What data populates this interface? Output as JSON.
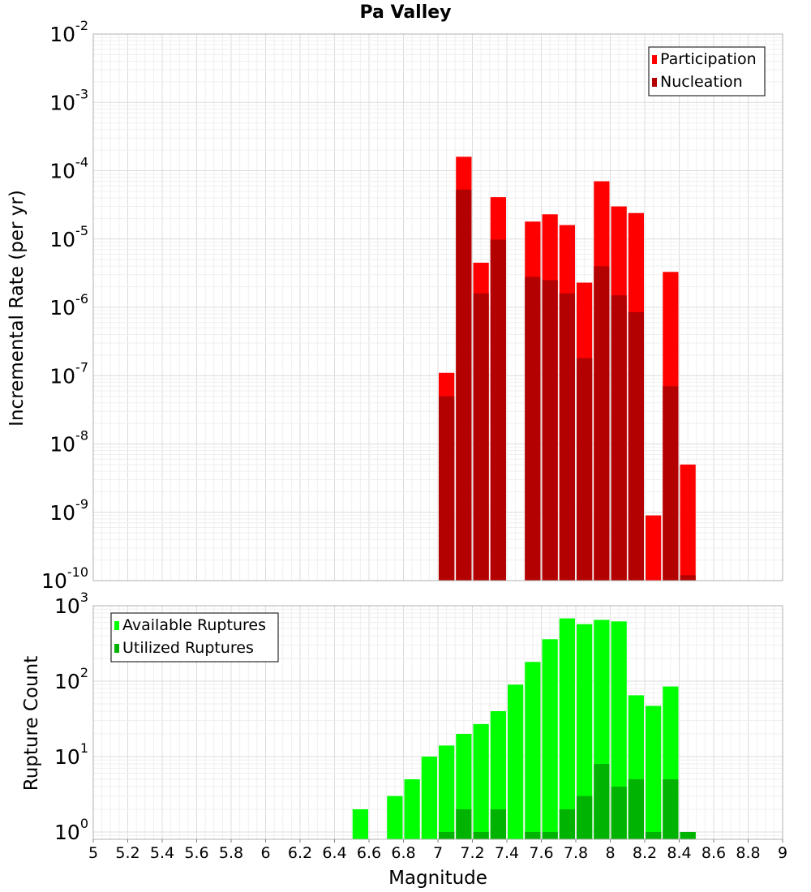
{
  "chart_data": [
    {
      "type": "bar",
      "title": "Pa Valley",
      "ylabel": "Incremental Rate (per yr)",
      "xlabel": "",
      "yscale": "log",
      "ylim": [
        1e-10,
        0.01
      ],
      "xlim": [
        5,
        9
      ],
      "bar_width": 0.1,
      "grid": true,
      "legend_position": "top-right",
      "y_tick_exponents": [
        "-2",
        "-3",
        "-4",
        "-5",
        "-6",
        "-7",
        "-8",
        "-9",
        "-10"
      ],
      "series": [
        {
          "name": "Participation",
          "color": "#ff0000",
          "x": [
            7.05,
            7.15,
            7.25,
            7.35,
            7.55,
            7.65,
            7.75,
            7.85,
            7.95,
            8.05,
            8.15,
            8.25,
            8.35,
            8.45
          ],
          "values": [
            1.1e-07,
            0.00016,
            4.5e-06,
            4.1e-05,
            1.8e-05,
            2.3e-05,
            1.6e-05,
            2.3e-06,
            7e-05,
            3e-05,
            2.4e-05,
            9e-10,
            3.3e-06,
            5e-09
          ]
        },
        {
          "name": "Nucleation",
          "color": "#b30000",
          "x": [
            7.05,
            7.15,
            7.25,
            7.35,
            7.55,
            7.65,
            7.75,
            7.85,
            7.95,
            8.05,
            8.15,
            8.35,
            8.45
          ],
          "values": [
            5e-08,
            5.3e-05,
            1.6e-06,
            9.8e-06,
            2.8e-06,
            2.5e-06,
            1.6e-06,
            1.8e-07,
            4e-06,
            1.5e-06,
            8.5e-07,
            7e-08,
            1.2e-10
          ]
        }
      ]
    },
    {
      "type": "bar",
      "title": "",
      "ylabel": "Rupture Count",
      "xlabel": "Magnitude",
      "yscale": "log",
      "ylim": [
        0.8,
        1000
      ],
      "xlim": [
        5,
        9
      ],
      "bar_width": 0.1,
      "grid": true,
      "legend_position": "top-left",
      "y_tick_exponents": [
        "3",
        "2",
        "1",
        "0"
      ],
      "x_ticks": [
        "5",
        "5.2",
        "5.4",
        "5.6",
        "5.8",
        "6",
        "6.2",
        "6.4",
        "6.6",
        "6.8",
        "7",
        "7.2",
        "7.4",
        "7.6",
        "7.8",
        "8",
        "8.2",
        "8.4",
        "8.6",
        "8.8",
        "9"
      ],
      "series": [
        {
          "name": "Available Ruptures",
          "color": "#00ff00",
          "x": [
            6.55,
            6.75,
            6.85,
            6.95,
            7.05,
            7.15,
            7.25,
            7.35,
            7.45,
            7.55,
            7.65,
            7.75,
            7.85,
            7.95,
            8.05,
            8.15,
            8.25,
            8.35,
            8.45
          ],
          "values": [
            2,
            3,
            5,
            10,
            14,
            20,
            27,
            40,
            90,
            180,
            360,
            680,
            570,
            650,
            620,
            65,
            47,
            85,
            1
          ]
        },
        {
          "name": "Utilized Ruptures",
          "color": "#00b300",
          "x": [
            7.05,
            7.15,
            7.25,
            7.35,
            7.55,
            7.65,
            7.75,
            7.85,
            7.95,
            8.05,
            8.15,
            8.25,
            8.35,
            8.45
          ],
          "values": [
            1,
            2,
            1,
            2,
            1,
            1,
            2,
            3,
            8,
            4,
            5,
            1,
            5,
            1
          ]
        }
      ]
    }
  ]
}
